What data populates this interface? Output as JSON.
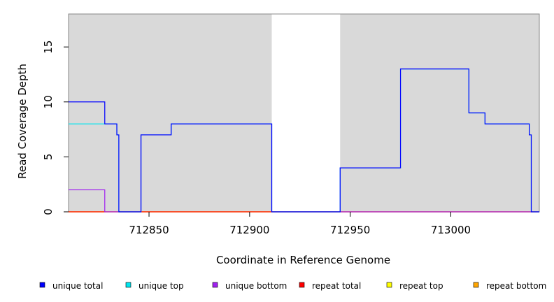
{
  "chart_data": {
    "type": "line",
    "xlabel": "Coordinate in Reference Genome",
    "ylabel": "Read Coverage Depth",
    "xlim": [
      712810,
      713044
    ],
    "ylim": [
      0,
      18
    ],
    "x_ticks": [
      712850,
      712900,
      712950,
      713000
    ],
    "y_ticks": [
      0,
      5,
      10,
      15
    ],
    "grid": false,
    "shaded_regions": [
      {
        "x_start": 712810,
        "x_end": 712911,
        "color": "#d9d9d9"
      },
      {
        "x_start": 712945,
        "x_end": 713044,
        "color": "#d9d9d9"
      }
    ],
    "series": [
      {
        "name": "unique total",
        "color": "#0000ff",
        "steps": [
          [
            712810,
            10
          ],
          [
            712828,
            8
          ],
          [
            712834,
            7
          ],
          [
            712835,
            0
          ],
          [
            712846,
            7
          ],
          [
            712861,
            8
          ],
          [
            712911,
            0
          ],
          [
            712945,
            4
          ],
          [
            712975,
            13
          ],
          [
            713009,
            9
          ],
          [
            713017,
            8
          ],
          [
            713039,
            7
          ],
          [
            713040,
            0
          ],
          [
            713044,
            0
          ]
        ]
      },
      {
        "name": "unique top",
        "color": "#00e5ee",
        "steps": [
          [
            712810,
            8
          ],
          [
            712834,
            7
          ],
          [
            712835,
            0
          ],
          [
            712846,
            7
          ],
          [
            712861,
            8
          ],
          [
            712911,
            0
          ],
          [
            712945,
            4
          ],
          [
            712975,
            13
          ],
          [
            713009,
            9
          ],
          [
            713017,
            8
          ],
          [
            713039,
            7
          ],
          [
            713040,
            0
          ],
          [
            713044,
            0
          ]
        ]
      },
      {
        "name": "unique bottom",
        "color": "#a020f0",
        "steps": [
          [
            712810,
            2
          ],
          [
            712828,
            0
          ],
          [
            712846,
            7
          ],
          [
            712861,
            8
          ],
          [
            712911,
            0
          ],
          [
            713044,
            0
          ]
        ]
      },
      {
        "name": "repeat total",
        "color": "#ff0000",
        "steps": [
          [
            712810,
            0
          ],
          [
            713044,
            0
          ]
        ]
      },
      {
        "name": "repeat top",
        "color": "#ffff00",
        "steps": [
          [
            712810,
            0
          ],
          [
            713044,
            0
          ]
        ]
      },
      {
        "name": "repeat bottom",
        "color": "#ffa500",
        "steps": [
          [
            712810,
            0
          ],
          [
            713044,
            0
          ]
        ]
      }
    ],
    "legend_position": "bottom"
  }
}
